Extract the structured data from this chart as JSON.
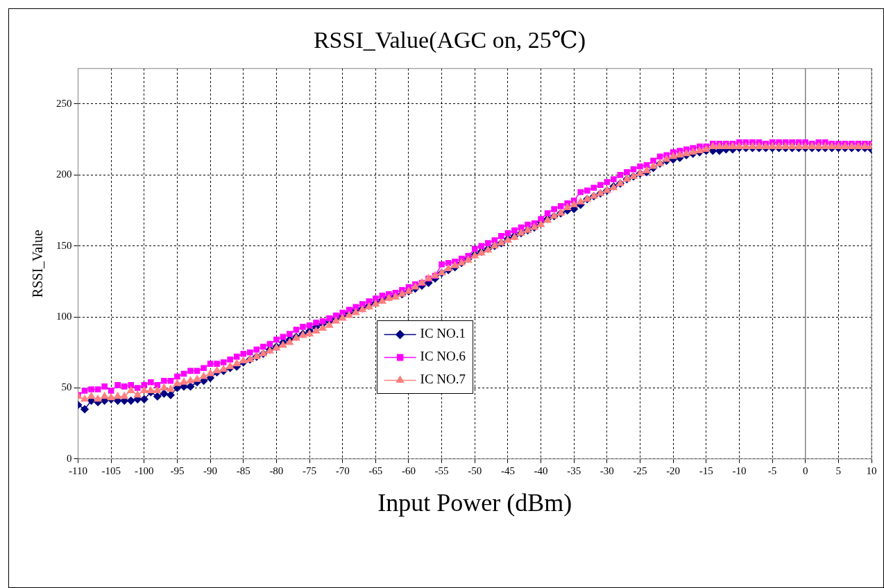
{
  "chart_data": {
    "type": "line",
    "title": "RSSI_Value(AGC on, 25℃)",
    "xlabel": "Input Power (dBm)",
    "ylabel": "RSSI_Value",
    "x": [
      -110,
      -109,
      -108,
      -107,
      -106,
      -105,
      -104,
      -103,
      -102,
      -101,
      -100,
      -99,
      -98,
      -97,
      -96,
      -95,
      -94,
      -93,
      -92,
      -91,
      -90,
      -89,
      -88,
      -87,
      -86,
      -85,
      -84,
      -83,
      -82,
      -81,
      -80,
      -79,
      -78,
      -77,
      -76,
      -75,
      -74,
      -73,
      -72,
      -71,
      -70,
      -69,
      -68,
      -67,
      -66,
      -65,
      -64,
      -63,
      -62,
      -61,
      -60,
      -59,
      -58,
      -57,
      -56,
      -55,
      -54,
      -53,
      -52,
      -51,
      -50,
      -49,
      -48,
      -47,
      -46,
      -45,
      -44,
      -43,
      -42,
      -41,
      -40,
      -39,
      -38,
      -37,
      -36,
      -35,
      -34,
      -33,
      -32,
      -31,
      -30,
      -29,
      -28,
      -27,
      -26,
      -25,
      -24,
      -23,
      -22,
      -21,
      -20,
      -19,
      -18,
      -17,
      -16,
      -15,
      -14,
      -13,
      -12,
      -11,
      -10,
      -9,
      -8,
      -7,
      -6,
      -5,
      -4,
      -3,
      -2,
      -1,
      0,
      1,
      2,
      3,
      4,
      5,
      6,
      7,
      8,
      9,
      10
    ],
    "series": [
      {
        "name": "IC NO.1",
        "color": "#000080",
        "marker": "diamond",
        "values": [
          38,
          35,
          41,
          40,
          41,
          42,
          41,
          41,
          41,
          42,
          42,
          47,
          44,
          46,
          45,
          50,
          51,
          51,
          54,
          55,
          57,
          61,
          62,
          64,
          65,
          68,
          70,
          72,
          74,
          77,
          79,
          82,
          84,
          86,
          88,
          90,
          93,
          95,
          97,
          99,
          101,
          103,
          105,
          106,
          108,
          110,
          112,
          114,
          115,
          116,
          118,
          120,
          122,
          124,
          127,
          131,
          133,
          135,
          138,
          141,
          144,
          146,
          148,
          150,
          152,
          155,
          157,
          159,
          161,
          163,
          167,
          169,
          171,
          173,
          175,
          176,
          179,
          183,
          185,
          187,
          189,
          192,
          194,
          197,
          199,
          201,
          202,
          205,
          208,
          210,
          211,
          212,
          214,
          215,
          216,
          217,
          217,
          217,
          218,
          218,
          219,
          219,
          219,
          219,
          219,
          219,
          219,
          219,
          219,
          219,
          219,
          219,
          219,
          219,
          219,
          219,
          219,
          219,
          219,
          219,
          218
        ]
      },
      {
        "name": "IC NO.6",
        "color": "#ff00ff",
        "marker": "square",
        "values": [
          45,
          48,
          49,
          49,
          51,
          48,
          52,
          51,
          52,
          50,
          52,
          54,
          52,
          55,
          55,
          58,
          60,
          62,
          62,
          64,
          67,
          67,
          68,
          70,
          72,
          74,
          75,
          77,
          79,
          81,
          84,
          86,
          88,
          91,
          93,
          94,
          96,
          97,
          99,
          101,
          103,
          105,
          107,
          109,
          111,
          113,
          115,
          116,
          117,
          119,
          121,
          123,
          124,
          127,
          129,
          137,
          138,
          139,
          141,
          143,
          148,
          150,
          152,
          154,
          157,
          159,
          161,
          163,
          165,
          166,
          169,
          173,
          176,
          178,
          180,
          182,
          188,
          189,
          191,
          193,
          195,
          197,
          200,
          202,
          204,
          206,
          207,
          210,
          213,
          214,
          216,
          217,
          218,
          219,
          220,
          220,
          222,
          222,
          222,
          222,
          223,
          223,
          223,
          223,
          222,
          223,
          223,
          223,
          223,
          223,
          223,
          222,
          223,
          223,
          222,
          222,
          222,
          222,
          222,
          222,
          222
        ]
      },
      {
        "name": "IC NO.7",
        "color": "#ff8080",
        "marker": "triangle",
        "values": [
          44,
          42,
          44,
          42,
          44,
          43,
          44,
          44,
          48,
          45,
          48,
          48,
          48,
          50,
          49,
          53,
          54,
          55,
          56,
          58,
          60,
          62,
          63,
          65,
          67,
          69,
          70,
          72,
          74,
          76,
          78,
          80,
          82,
          85,
          87,
          88,
          90,
          92,
          94,
          97,
          99,
          101,
          103,
          105,
          107,
          109,
          111,
          113,
          114,
          116,
          118,
          121,
          124,
          127,
          129,
          131,
          134,
          136,
          138,
          140,
          143,
          145,
          147,
          150,
          152,
          154,
          156,
          159,
          161,
          163,
          165,
          168,
          171,
          173,
          177,
          179,
          181,
          183,
          185,
          187,
          189,
          191,
          194,
          197,
          199,
          201,
          203,
          206,
          208,
          211,
          213,
          214,
          215,
          216,
          217,
          218,
          220,
          220,
          220,
          220,
          220,
          220,
          220,
          220,
          220,
          220,
          220,
          220,
          220,
          220,
          220,
          220,
          220,
          220,
          220,
          220,
          220,
          220,
          220,
          220,
          220
        ]
      }
    ],
    "xlim": [
      -110,
      10
    ],
    "xticks": [
      -110,
      -105,
      -100,
      -95,
      -90,
      -85,
      -80,
      -75,
      -70,
      -65,
      -60,
      -55,
      -50,
      -45,
      -40,
      -35,
      -30,
      -25,
      -20,
      -15,
      -10,
      -5,
      0,
      5,
      10
    ],
    "ylim": [
      0,
      275
    ],
    "yticks": [
      0,
      50,
      100,
      150,
      200,
      250
    ],
    "ref_lines": [
      {
        "axis": "x",
        "value": 0,
        "color": "#808080",
        "line_style": "solid"
      }
    ],
    "grid": true,
    "line_style": "solid",
    "legend": "center"
  }
}
